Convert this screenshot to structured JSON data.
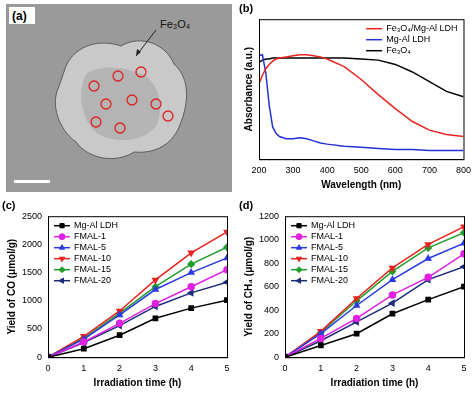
{
  "image_panel": {
    "label": "(a)",
    "annotation": "Fe₃O₄"
  },
  "chart_data": [
    {
      "type": "line",
      "title": "(b)",
      "x_label": "Wavelength (nm)",
      "y_label": "Absorbance (a.u.)",
      "x": [
        200,
        210,
        220,
        230,
        240,
        250,
        260,
        280,
        300,
        320,
        340,
        360,
        380,
        400,
        450,
        500,
        550,
        600,
        650,
        700,
        750,
        800
      ],
      "series": [
        {
          "name": "Fe₃O₄/Mg-Al LDH",
          "color": "#e8231f",
          "values": [
            0.7,
            0.78,
            0.84,
            0.88,
            0.91,
            0.93,
            0.94,
            0.95,
            0.96,
            0.97,
            0.97,
            0.96,
            0.95,
            0.93,
            0.86,
            0.74,
            0.6,
            0.47,
            0.35,
            0.27,
            0.23,
            0.21
          ]
        },
        {
          "name": "Mg-Al LDH",
          "color": "#2233d6",
          "values": [
            0.96,
            0.97,
            0.8,
            0.5,
            0.3,
            0.24,
            0.21,
            0.19,
            0.19,
            0.2,
            0.19,
            0.17,
            0.15,
            0.14,
            0.12,
            0.11,
            0.1,
            0.09,
            0.09,
            0.08,
            0.08,
            0.08
          ]
        },
        {
          "name": "Fe₃O₄",
          "color": "#000000",
          "values": [
            0.9,
            0.92,
            0.93,
            0.93,
            0.94,
            0.94,
            0.94,
            0.94,
            0.94,
            0.94,
            0.94,
            0.94,
            0.94,
            0.94,
            0.94,
            0.93,
            0.92,
            0.88,
            0.81,
            0.72,
            0.63,
            0.58
          ]
        }
      ],
      "xlim": [
        200,
        800
      ],
      "xticks": [
        200,
        300,
        400,
        500,
        600,
        700,
        800
      ],
      "ylim": [
        0,
        1.3
      ],
      "tick_labels": "x",
      "legend": "upper right",
      "grid": false
    },
    {
      "type": "line",
      "title": "(c)",
      "x_label": "Irradiation time (h)",
      "y_label": "Yield of CO (μmol/g)",
      "x": [
        0,
        1,
        2,
        3,
        4,
        5
      ],
      "series": [
        {
          "name": "Mg-Al LDH",
          "color": "#000000",
          "marker": "square",
          "values": [
            0,
            150,
            390,
            690,
            870,
            1010
          ]
        },
        {
          "name": "FMAL-1",
          "color": "#e020e0",
          "marker": "circle",
          "values": [
            0,
            270,
            600,
            950,
            1250,
            1550
          ]
        },
        {
          "name": "FMAL-5",
          "color": "#2a3be0",
          "marker": "triangle-up",
          "values": [
            0,
            320,
            750,
            1200,
            1500,
            1760
          ]
        },
        {
          "name": "FMAL-10",
          "color": "#e8231f",
          "marker": "triangle-down",
          "values": [
            0,
            370,
            820,
            1370,
            1850,
            2220
          ]
        },
        {
          "name": "FMAL-15",
          "color": "#1f9e2c",
          "marker": "diamond",
          "values": [
            0,
            340,
            780,
            1250,
            1650,
            1950
          ]
        },
        {
          "name": "FMAL-20",
          "color": "#1c2a7a",
          "marker": "triangle-left",
          "values": [
            0,
            260,
            560,
            900,
            1140,
            1330
          ]
        }
      ],
      "xlim": [
        0,
        5
      ],
      "xticks": [
        0,
        1,
        2,
        3,
        4,
        5
      ],
      "ylim": [
        0,
        2500
      ],
      "yticks": [
        0,
        500,
        1000,
        1500,
        2000,
        2500
      ],
      "legend": "upper left",
      "grid": false
    },
    {
      "type": "line",
      "title": "(d)",
      "x_label": "Irradiation time (h)",
      "y_label": "Yield of CH₄ (μmol/g)",
      "x": [
        0,
        1,
        2,
        3,
        4,
        5
      ],
      "series": [
        {
          "name": "Mg-Al LDH",
          "color": "#000000",
          "marker": "square",
          "values": [
            0,
            100,
            200,
            370,
            490,
            600
          ]
        },
        {
          "name": "FMAL-1",
          "color": "#e020e0",
          "marker": "circle",
          "values": [
            0,
            160,
            330,
            530,
            680,
            880
          ]
        },
        {
          "name": "FMAL-5",
          "color": "#2a3be0",
          "marker": "triangle-up",
          "values": [
            0,
            200,
            440,
            660,
            840,
            970
          ]
        },
        {
          "name": "FMAL-10",
          "color": "#e8231f",
          "marker": "triangle-down",
          "values": [
            0,
            220,
            500,
            760,
            960,
            1110
          ]
        },
        {
          "name": "FMAL-15",
          "color": "#1f9e2c",
          "marker": "diamond",
          "values": [
            0,
            210,
            480,
            730,
            930,
            1060
          ]
        },
        {
          "name": "FMAL-20",
          "color": "#1c2a7a",
          "marker": "triangle-left",
          "values": [
            0,
            140,
            300,
            460,
            660,
            770
          ]
        }
      ],
      "xlim": [
        0,
        5
      ],
      "xticks": [
        0,
        1,
        2,
        3,
        4,
        5
      ],
      "ylim": [
        0,
        1200
      ],
      "yticks": [
        0,
        200,
        400,
        600,
        800,
        1000,
        1200
      ],
      "legend": "upper left",
      "grid": false
    }
  ]
}
